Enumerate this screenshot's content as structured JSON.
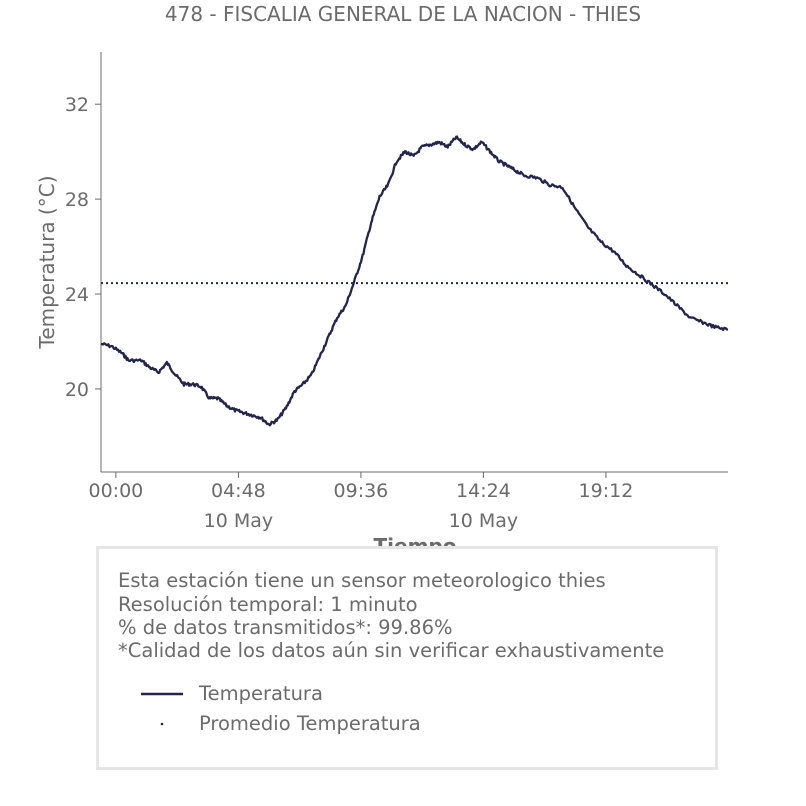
{
  "chart_data": {
    "type": "line",
    "title": "478 - FISCALIA GENERAL DE LA NACION - THIES",
    "xlabel": "Tiempo",
    "ylabel": "Temperatura (°C)",
    "x_unit": "time of day (HH:MM), 10 May",
    "xlim": [
      "23:25",
      "23:59"
    ],
    "ylim": [
      16.5,
      34.2
    ],
    "x_ticks": [
      {
        "label": "00:00",
        "sublabel": ""
      },
      {
        "label": "04:48",
        "sublabel": "10 May"
      },
      {
        "label": "09:36",
        "sublabel": ""
      },
      {
        "label": "14:24",
        "sublabel": "10 May"
      },
      {
        "label": "19:12",
        "sublabel": ""
      }
    ],
    "y_ticks": [
      20,
      24,
      28,
      32
    ],
    "grid": false,
    "legend_placement": "below chart, inside info box",
    "series": [
      {
        "name": "Temperatura",
        "color": "#23254a",
        "style": "solid",
        "x": [
          "23:25",
          "23:50",
          "00:15",
          "00:30",
          "01:00",
          "01:20",
          "01:40",
          "02:00",
          "02:20",
          "02:40",
          "03:00",
          "03:20",
          "03:40",
          "04:00",
          "04:20",
          "04:40",
          "05:00",
          "05:20",
          "05:40",
          "06:00",
          "06:20",
          "06:40",
          "07:00",
          "07:20",
          "07:40",
          "08:00",
          "08:20",
          "08:40",
          "09:00",
          "09:20",
          "09:40",
          "10:00",
          "10:20",
          "10:40",
          "11:00",
          "11:20",
          "11:40",
          "12:00",
          "12:20",
          "12:40",
          "13:00",
          "13:20",
          "13:40",
          "14:00",
          "14:20",
          "14:40",
          "15:00",
          "15:20",
          "15:40",
          "16:00",
          "16:30",
          "17:00",
          "17:30",
          "18:00",
          "18:30",
          "19:00",
          "19:30",
          "20:00",
          "20:30",
          "21:00",
          "21:30",
          "22:00",
          "22:30",
          "23:00",
          "23:30",
          "23:59"
        ],
        "values": [
          21.9,
          21.8,
          21.5,
          21.2,
          21.2,
          20.9,
          20.7,
          21.1,
          20.6,
          20.2,
          20.2,
          20.1,
          19.6,
          19.6,
          19.3,
          19.1,
          19.0,
          18.9,
          18.8,
          18.5,
          18.7,
          19.2,
          19.9,
          20.2,
          20.6,
          21.4,
          22.2,
          23.0,
          23.5,
          24.5,
          25.6,
          27.0,
          28.1,
          28.6,
          29.6,
          30.0,
          29.8,
          30.2,
          30.3,
          30.4,
          30.2,
          30.6,
          30.3,
          30.1,
          30.4,
          30.0,
          29.6,
          29.4,
          29.2,
          29.0,
          28.9,
          28.6,
          28.5,
          27.6,
          26.8,
          26.2,
          25.8,
          25.2,
          24.8,
          24.4,
          24.0,
          23.5,
          23.0,
          22.8,
          22.6,
          22.5
        ]
      },
      {
        "name": "Promedio Temperatura",
        "color": "#23254a",
        "style": "dotted",
        "x": [
          "23:25",
          "23:59"
        ],
        "values": [
          24.46,
          24.46
        ]
      }
    ]
  },
  "info": {
    "line1": "Esta estación tiene un sensor meteorologico thies",
    "line2": "Resolución temporal: 1 minuto",
    "line3": "% de datos transmitidos*: 99.86%",
    "line4": "*Calidad de los datos aún sin verificar exhaustivamente"
  },
  "legend": {
    "items": [
      {
        "label": "Temperatura",
        "style": "solid",
        "color": "#23254a"
      },
      {
        "label": "Promedio Temperatura",
        "style": "dotted",
        "color": "#23254a"
      }
    ]
  }
}
